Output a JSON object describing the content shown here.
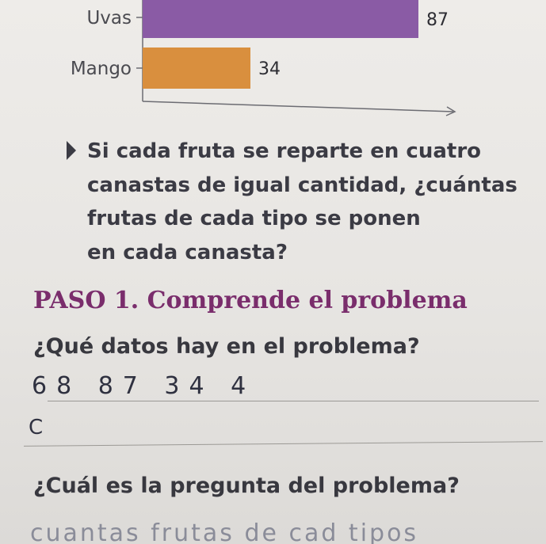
{
  "chart_data": {
    "type": "bar",
    "orientation": "horizontal",
    "categories": [
      "Uvas",
      "Mango"
    ],
    "values": [
      87,
      34
    ],
    "data_labels": [
      "87",
      "34"
    ],
    "colors": [
      "#8a5ba5",
      "#d98f3e"
    ],
    "xlim": [
      0,
      100
    ],
    "title": "",
    "xlabel": "",
    "ylabel": ""
  },
  "problem": {
    "question_lines": [
      "Si cada fruta se reparte en cuatro",
      "canastas de igual cantidad, ¿cuántas",
      "frutas de cada tipo se ponen",
      "en cada canasta?"
    ]
  },
  "step": {
    "title": "PASO 1. Comprende el problema"
  },
  "prompts": {
    "data_question": "¿Qué datos hay en el problema?",
    "main_question": "¿Cuál es la pregunta del problema?"
  },
  "handwriting": {
    "answer_1": "68 87 34 4",
    "answer_2": "C",
    "answer_3": "cuantas frutas de cad tipos"
  },
  "colors": {
    "accent_purple": "#7a2d6c",
    "text": "#3b3b44"
  }
}
